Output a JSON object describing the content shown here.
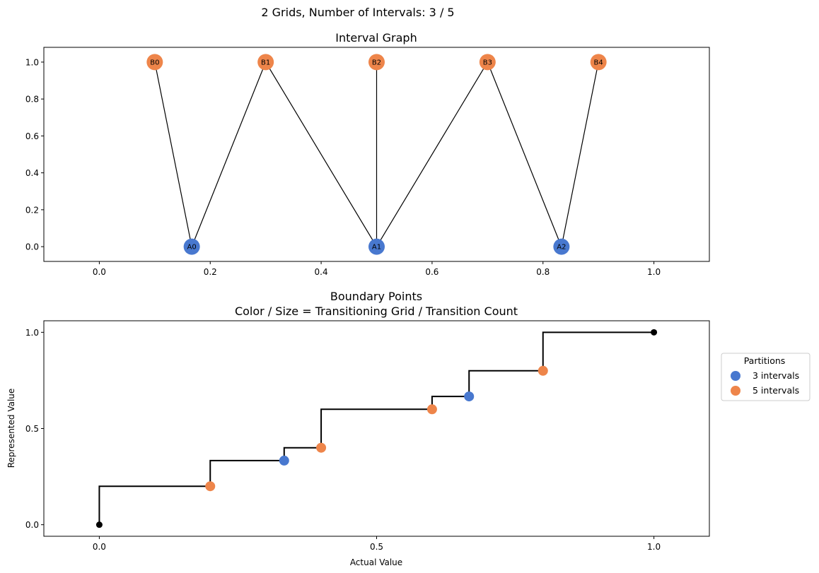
{
  "suptitle": "2 Grids, Number of Intervals: 3 / 5",
  "colors": {
    "grid_a": "#4878CF",
    "grid_b": "#EE854A",
    "endpoint": "#000000",
    "edge": "#000000"
  },
  "chart_data": [
    {
      "type": "network",
      "title": "Interval Graph",
      "xlim": [
        -0.1,
        1.1
      ],
      "ylim": [
        -0.08,
        1.08
      ],
      "xticks": [
        "0.0",
        "0.2",
        "0.4",
        "0.6",
        "0.8",
        "1.0"
      ],
      "xtick_values": [
        0.0,
        0.2,
        0.4,
        0.6,
        0.8,
        1.0
      ],
      "yticks": [
        "0.0",
        "0.2",
        "0.4",
        "0.6",
        "0.8",
        "1.0"
      ],
      "ytick_values": [
        0.0,
        0.2,
        0.4,
        0.6,
        0.8,
        1.0
      ],
      "nodes": [
        {
          "id": "A0",
          "x": 0.1667,
          "y": 0,
          "group": "A"
        },
        {
          "id": "A1",
          "x": 0.5,
          "y": 0,
          "group": "A"
        },
        {
          "id": "A2",
          "x": 0.8333,
          "y": 0,
          "group": "A"
        },
        {
          "id": "B0",
          "x": 0.1,
          "y": 1,
          "group": "B"
        },
        {
          "id": "B1",
          "x": 0.3,
          "y": 1,
          "group": "B"
        },
        {
          "id": "B2",
          "x": 0.5,
          "y": 1,
          "group": "B"
        },
        {
          "id": "B3",
          "x": 0.7,
          "y": 1,
          "group": "B"
        },
        {
          "id": "B4",
          "x": 0.9,
          "y": 1,
          "group": "B"
        }
      ],
      "edges": [
        [
          "B0",
          "A0"
        ],
        [
          "A0",
          "B1"
        ],
        [
          "B1",
          "A1"
        ],
        [
          "B2",
          "A1"
        ],
        [
          "A1",
          "B3"
        ],
        [
          "B3",
          "A2"
        ],
        [
          "A2",
          "B4"
        ]
      ]
    },
    {
      "type": "step",
      "title": "Boundary Points\nColor / Size = Transitioning Grid / Transition Count",
      "title_lines": [
        "Boundary Points",
        "Color / Size = Transitioning Grid / Transition Count"
      ],
      "xlabel": "Actual Value",
      "ylabel": "Represented Value",
      "xlim": [
        -0.1,
        1.1
      ],
      "ylim": [
        -0.06,
        1.06
      ],
      "xticks": [
        "0.0",
        "0.5",
        "1.0"
      ],
      "xtick_values": [
        0.0,
        0.5,
        1.0
      ],
      "yticks": [
        "0.0",
        "0.5",
        "1.0"
      ],
      "ytick_values": [
        0.0,
        0.5,
        1.0
      ],
      "step_x": [
        0.0,
        0.2,
        0.3333,
        0.4,
        0.6,
        0.6667,
        0.8,
        1.0
      ],
      "step_y": [
        0.2,
        0.3333,
        0.4,
        0.6,
        0.6667,
        0.8,
        1.0,
        1.0
      ],
      "endpoints": [
        {
          "x": 0.0,
          "y": 0.0
        },
        {
          "x": 1.0,
          "y": 1.0
        }
      ],
      "points": [
        {
          "x": 0.2,
          "y": 0.2,
          "series": "5 intervals"
        },
        {
          "x": 0.3333,
          "y": 0.3333,
          "series": "3 intervals"
        },
        {
          "x": 0.4,
          "y": 0.4,
          "series": "5 intervals"
        },
        {
          "x": 0.6,
          "y": 0.6,
          "series": "5 intervals"
        },
        {
          "x": 0.6667,
          "y": 0.6667,
          "series": "3 intervals"
        },
        {
          "x": 0.8,
          "y": 0.8,
          "series": "5 intervals"
        }
      ],
      "legend": {
        "title": "Partitions",
        "placement": "outside right",
        "entries": [
          {
            "label": "3 intervals",
            "color": "#4878CF"
          },
          {
            "label": "5 intervals",
            "color": "#EE854A"
          }
        ]
      }
    }
  ]
}
